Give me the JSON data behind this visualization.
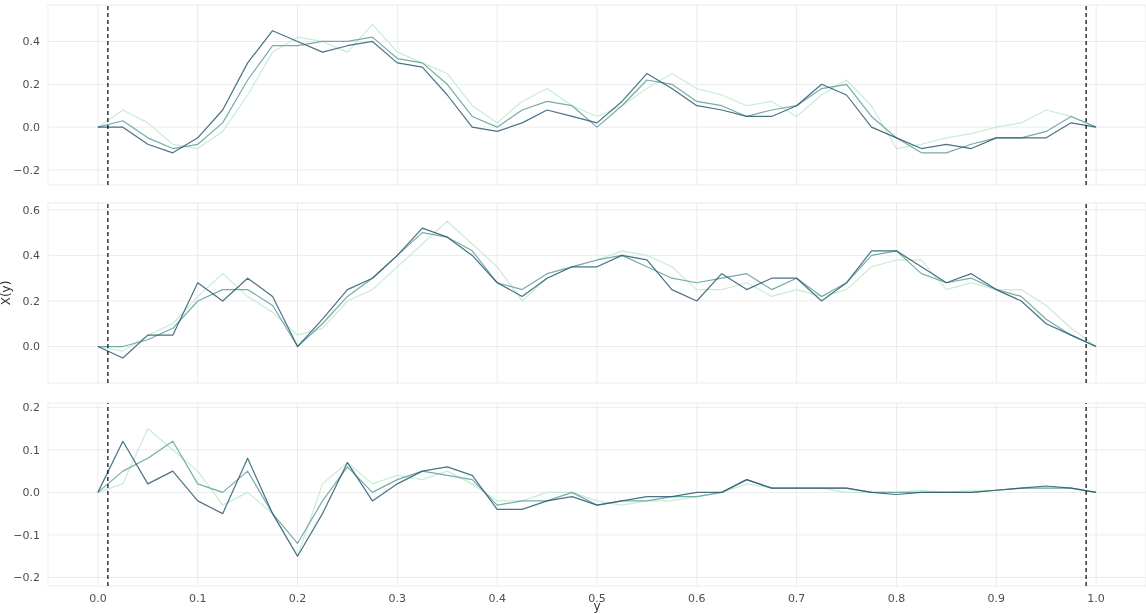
{
  "chart_data": [
    {
      "type": "line",
      "x": [
        0,
        0.025,
        0.05,
        0.075,
        0.1,
        0.125,
        0.15,
        0.175,
        0.2,
        0.225,
        0.25,
        0.275,
        0.3,
        0.325,
        0.35,
        0.375,
        0.4,
        0.425,
        0.45,
        0.475,
        0.5,
        0.525,
        0.55,
        0.575,
        0.6,
        0.625,
        0.65,
        0.675,
        0.7,
        0.725,
        0.75,
        0.775,
        0.8,
        0.825,
        0.85,
        0.875,
        0.9,
        0.925,
        0.95,
        0.975,
        1
      ],
      "series": [
        {
          "color": "#bfe9cf",
          "values": [
            0,
            0.08,
            0.02,
            -0.08,
            -0.1,
            -0.02,
            0.15,
            0.35,
            0.42,
            0.4,
            0.35,
            0.48,
            0.35,
            0.3,
            0.25,
            0.1,
            0.02,
            0.12,
            0.18,
            0.1,
            0.05,
            0.1,
            0.18,
            0.25,
            0.18,
            0.15,
            0.1,
            0.12,
            0.05,
            0.15,
            0.22,
            0.1,
            -0.1,
            -0.08,
            -0.05,
            -0.03,
            0,
            0.02,
            0.08,
            0.05,
            0
          ]
        },
        {
          "color": "#5e9e9a",
          "values": [
            0,
            0.03,
            -0.05,
            -0.1,
            -0.08,
            0.02,
            0.22,
            0.38,
            0.38,
            0.4,
            0.4,
            0.42,
            0.32,
            0.3,
            0.2,
            0.05,
            0,
            0.08,
            0.12,
            0.1,
            0,
            0.1,
            0.22,
            0.2,
            0.12,
            0.1,
            0.05,
            0.08,
            0.1,
            0.18,
            0.2,
            0.05,
            -0.05,
            -0.12,
            -0.12,
            -0.08,
            -0.05,
            -0.05,
            -0.02,
            0.05,
            0
          ]
        },
        {
          "color": "#2b5870",
          "values": [
            0,
            0,
            -0.08,
            -0.12,
            -0.05,
            0.08,
            0.3,
            0.45,
            0.4,
            0.35,
            0.38,
            0.4,
            0.3,
            0.28,
            0.15,
            0,
            -0.02,
            0.02,
            0.08,
            0.05,
            0.02,
            0.12,
            0.25,
            0.18,
            0.1,
            0.08,
            0.05,
            0.05,
            0.1,
            0.2,
            0.15,
            0,
            -0.05,
            -0.1,
            -0.08,
            -0.1,
            -0.05,
            -0.05,
            -0.05,
            0.02,
            0
          ]
        }
      ],
      "xlim": [
        -0.05,
        1.05
      ],
      "xticks": [
        {
          "value": 0,
          "label": null
        },
        {
          "value": 0.1,
          "label": null
        },
        {
          "value": 0.2,
          "label": null
        },
        {
          "value": 0.3,
          "label": null
        },
        {
          "value": 0.4,
          "label": null
        },
        {
          "value": 0.5,
          "label": null
        },
        {
          "value": 0.6,
          "label": null
        },
        {
          "value": 0.7,
          "label": null
        },
        {
          "value": 0.8,
          "label": null
        },
        {
          "value": 0.9,
          "label": null
        },
        {
          "value": 1,
          "label": null
        }
      ],
      "ylim": [
        -0.27,
        0.57
      ],
      "yticks": [
        {
          "value": -0.2,
          "label": "−0.2"
        },
        {
          "value": 0,
          "label": "0.0"
        },
        {
          "value": 0.2,
          "label": "0.2"
        },
        {
          "value": 0.4,
          "label": "0.4"
        }
      ],
      "ref_lines": [
        {
          "axis": "x",
          "value": 0.01,
          "color": "#000000",
          "line_style": "dashed"
        },
        {
          "axis": "x",
          "value": 0.99,
          "color": "#000000",
          "line_style": "dashed"
        }
      ],
      "grid": true,
      "legend": false,
      "tick_labels": "y"
    },
    {
      "type": "line",
      "ylabel": "X(y)",
      "x": [
        0,
        0.025,
        0.05,
        0.075,
        0.1,
        0.125,
        0.15,
        0.175,
        0.2,
        0.225,
        0.25,
        0.275,
        0.3,
        0.325,
        0.35,
        0.375,
        0.4,
        0.425,
        0.45,
        0.475,
        0.5,
        0.525,
        0.55,
        0.575,
        0.6,
        0.625,
        0.65,
        0.675,
        0.7,
        0.725,
        0.75,
        0.775,
        0.8,
        0.825,
        0.85,
        0.875,
        0.9,
        0.925,
        0.95,
        0.975,
        1
      ],
      "series": [
        {
          "color": "#bfe9cf",
          "values": [
            0,
            -0.02,
            0.05,
            0.1,
            0.22,
            0.32,
            0.22,
            0.15,
            0.05,
            0.08,
            0.2,
            0.25,
            0.35,
            0.45,
            0.55,
            0.45,
            0.35,
            0.2,
            0.3,
            0.35,
            0.38,
            0.42,
            0.4,
            0.35,
            0.25,
            0.25,
            0.28,
            0.22,
            0.25,
            0.22,
            0.25,
            0.35,
            0.38,
            0.38,
            0.25,
            0.28,
            0.25,
            0.25,
            0.18,
            0.08,
            0
          ]
        },
        {
          "color": "#5e9e9a",
          "values": [
            0,
            0,
            0.03,
            0.08,
            0.2,
            0.25,
            0.25,
            0.18,
            0,
            0.1,
            0.22,
            0.3,
            0.4,
            0.5,
            0.48,
            0.42,
            0.28,
            0.25,
            0.32,
            0.35,
            0.38,
            0.4,
            0.35,
            0.3,
            0.28,
            0.3,
            0.32,
            0.25,
            0.3,
            0.22,
            0.28,
            0.4,
            0.42,
            0.32,
            0.28,
            0.3,
            0.25,
            0.22,
            0.12,
            0.05,
            0
          ]
        },
        {
          "color": "#2b5870",
          "values": [
            0,
            -0.05,
            0.05,
            0.05,
            0.28,
            0.2,
            0.3,
            0.22,
            0,
            0.12,
            0.25,
            0.3,
            0.4,
            0.52,
            0.48,
            0.4,
            0.28,
            0.22,
            0.3,
            0.35,
            0.35,
            0.4,
            0.38,
            0.25,
            0.2,
            0.32,
            0.25,
            0.3,
            0.3,
            0.2,
            0.28,
            0.42,
            0.42,
            0.35,
            0.28,
            0.32,
            0.25,
            0.2,
            0.1,
            0.05,
            0
          ]
        }
      ],
      "xlim": [
        -0.05,
        1.05
      ],
      "xticks": [
        {
          "value": 0,
          "label": null
        },
        {
          "value": 0.1,
          "label": null
        },
        {
          "value": 0.2,
          "label": null
        },
        {
          "value": 0.3,
          "label": null
        },
        {
          "value": 0.4,
          "label": null
        },
        {
          "value": 0.5,
          "label": null
        },
        {
          "value": 0.6,
          "label": null
        },
        {
          "value": 0.7,
          "label": null
        },
        {
          "value": 0.8,
          "label": null
        },
        {
          "value": 0.9,
          "label": null
        },
        {
          "value": 1,
          "label": null
        }
      ],
      "ylim": [
        -0.16,
        0.63
      ],
      "yticks": [
        {
          "value": 0,
          "label": "0.0"
        },
        {
          "value": 0.2,
          "label": "0.2"
        },
        {
          "value": 0.4,
          "label": "0.4"
        },
        {
          "value": 0.6,
          "label": "0.6"
        }
      ],
      "ref_lines": [
        {
          "axis": "x",
          "value": 0.01,
          "color": "#000000",
          "line_style": "dashed"
        },
        {
          "axis": "x",
          "value": 0.99,
          "color": "#000000",
          "line_style": "dashed"
        }
      ],
      "grid": true,
      "legend": false,
      "tick_labels": "y"
    },
    {
      "type": "line",
      "xlabel": "y",
      "x": [
        0,
        0.025,
        0.05,
        0.075,
        0.1,
        0.125,
        0.15,
        0.175,
        0.2,
        0.225,
        0.25,
        0.275,
        0.3,
        0.325,
        0.35,
        0.375,
        0.4,
        0.425,
        0.45,
        0.475,
        0.5,
        0.525,
        0.55,
        0.575,
        0.6,
        0.625,
        0.65,
        0.675,
        0.7,
        0.725,
        0.75,
        0.775,
        0.8,
        0.825,
        0.85,
        0.875,
        0.9,
        0.925,
        0.95,
        0.975,
        1
      ],
      "series": [
        {
          "color": "#bfe9cf",
          "values": [
            0,
            0.02,
            0.15,
            0.1,
            0.05,
            -0.03,
            0,
            -0.05,
            -0.15,
            0.02,
            0.07,
            0.02,
            0.04,
            0.03,
            0.05,
            0.02,
            -0.02,
            -0.02,
            0,
            0,
            -0.02,
            -0.03,
            -0.02,
            -0.02,
            -0.01,
            0,
            0.02,
            0.01,
            0.01,
            0.01,
            0,
            0,
            0,
            0.005,
            0,
            0.005,
            0.005,
            0.01,
            0.01,
            0.01,
            0
          ]
        },
        {
          "color": "#5e9e9a",
          "values": [
            0,
            0.05,
            0.08,
            0.12,
            0.02,
            0,
            0.05,
            -0.05,
            -0.12,
            -0.02,
            0.06,
            0,
            0.03,
            0.05,
            0.04,
            0.03,
            -0.03,
            -0.02,
            -0.02,
            0,
            -0.03,
            -0.02,
            -0.02,
            -0.01,
            -0.01,
            0,
            0.03,
            0.01,
            0.01,
            0.01,
            0.01,
            0,
            0,
            0,
            0,
            0,
            0.005,
            0.01,
            0.01,
            0.01,
            0
          ]
        },
        {
          "color": "#2b5870",
          "values": [
            0,
            0.12,
            0.02,
            0.05,
            -0.02,
            -0.05,
            0.08,
            -0.05,
            -0.15,
            -0.05,
            0.07,
            -0.02,
            0.02,
            0.05,
            0.06,
            0.04,
            -0.04,
            -0.04,
            -0.02,
            -0.01,
            -0.03,
            -0.02,
            -0.01,
            -0.01,
            0,
            0,
            0.03,
            0.01,
            0.01,
            0.01,
            0.01,
            0,
            -0.005,
            0,
            0,
            0,
            0.005,
            0.01,
            0.015,
            0.01,
            0
          ]
        }
      ],
      "xlim": [
        -0.05,
        1.05
      ],
      "xticks": [
        {
          "value": 0,
          "label": "0.0"
        },
        {
          "value": 0.1,
          "label": "0.1"
        },
        {
          "value": 0.2,
          "label": "0.2"
        },
        {
          "value": 0.3,
          "label": "0.3"
        },
        {
          "value": 0.4,
          "label": "0.4"
        },
        {
          "value": 0.5,
          "label": "0.5"
        },
        {
          "value": 0.6,
          "label": "0.6"
        },
        {
          "value": 0.7,
          "label": "0.7"
        },
        {
          "value": 0.8,
          "label": "0.8"
        },
        {
          "value": 0.9,
          "label": "0.9"
        },
        {
          "value": 1,
          "label": "1.0"
        }
      ],
      "ylim": [
        -0.22,
        0.21
      ],
      "yticks": [
        {
          "value": -0.2,
          "label": "−0.2"
        },
        {
          "value": -0.1,
          "label": "−0.1"
        },
        {
          "value": 0,
          "label": "0.0"
        },
        {
          "value": 0.1,
          "label": "0.1"
        },
        {
          "value": 0.2,
          "label": "0.2"
        }
      ],
      "ref_lines": [
        {
          "axis": "x",
          "value": 0.01,
          "color": "#000000",
          "line_style": "dashed"
        },
        {
          "axis": "x",
          "value": 0.99,
          "color": "#000000",
          "line_style": "dashed"
        }
      ],
      "grid": true,
      "legend": false
    }
  ]
}
